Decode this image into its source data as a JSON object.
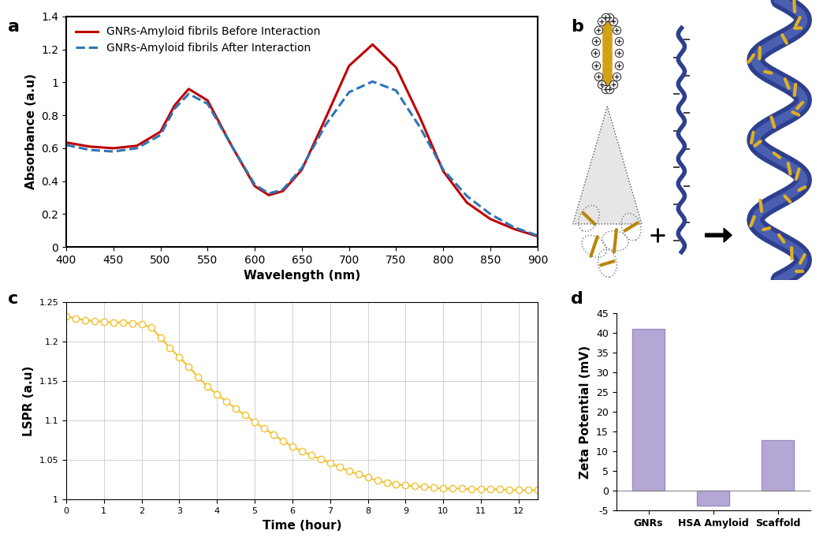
{
  "chart_data": [
    {
      "type": "line",
      "title": "a",
      "x_label": "Wavelength (nm)",
      "y_label": "Absorbance (a.u)",
      "x": [
        400,
        425,
        450,
        475,
        500,
        515,
        530,
        550,
        575,
        600,
        615,
        630,
        650,
        675,
        700,
        725,
        750,
        775,
        800,
        825,
        850,
        875,
        900
      ],
      "series": [
        {
          "name": "GNRs-Amyloid fibrils Before Interaction",
          "color": "#c00000",
          "line_style": "solid",
          "values": [
            0.635,
            0.61,
            0.6,
            0.615,
            0.7,
            0.86,
            0.96,
            0.89,
            0.62,
            0.37,
            0.315,
            0.34,
            0.47,
            0.78,
            1.1,
            1.23,
            1.09,
            0.79,
            0.46,
            0.27,
            0.17,
            0.11,
            0.065
          ]
        },
        {
          "name": "GNRs-Amyloid fibrils After Interaction",
          "color": "#2e75b6",
          "line_style": "dashed",
          "values": [
            0.62,
            0.59,
            0.58,
            0.6,
            0.68,
            0.84,
            0.93,
            0.87,
            0.62,
            0.38,
            0.325,
            0.35,
            0.48,
            0.74,
            0.94,
            1.005,
            0.95,
            0.73,
            0.47,
            0.31,
            0.2,
            0.12,
            0.07
          ]
        }
      ],
      "xlim": [
        400,
        900
      ],
      "xticks": [
        400,
        450,
        500,
        550,
        600,
        650,
        700,
        750,
        800,
        850,
        900
      ],
      "ylim": [
        0,
        1.4
      ],
      "yticks": [
        0,
        0.2,
        0.4,
        0.6,
        0.8,
        1,
        1.2,
        1.4
      ],
      "legend": "upper left",
      "grid": false
    },
    {
      "type": "line",
      "title": "c",
      "x_label": "Time (hour)",
      "y_label": "LSPR (a.u)",
      "x": [
        0,
        0.25,
        0.5,
        0.75,
        1,
        1.25,
        1.5,
        1.75,
        2,
        2.25,
        2.5,
        2.75,
        3,
        3.25,
        3.5,
        3.75,
        4,
        4.25,
        4.5,
        4.75,
        5,
        5.25,
        5.5,
        5.75,
        6,
        6.25,
        6.5,
        6.75,
        7,
        7.25,
        7.5,
        7.75,
        8,
        8.25,
        8.5,
        8.75,
        9,
        9.25,
        9.5,
        9.75,
        10,
        10.25,
        10.5,
        10.75,
        11,
        11.25,
        11.5,
        11.75,
        12,
        12.25,
        12.5
      ],
      "values": [
        1.232,
        1.229,
        1.227,
        1.226,
        1.225,
        1.224,
        1.224,
        1.223,
        1.222,
        1.218,
        1.205,
        1.192,
        1.18,
        1.168,
        1.155,
        1.143,
        1.133,
        1.124,
        1.115,
        1.107,
        1.098,
        1.09,
        1.082,
        1.074,
        1.067,
        1.061,
        1.056,
        1.051,
        1.046,
        1.041,
        1.036,
        1.032,
        1.028,
        1.024,
        1.021,
        1.019,
        1.018,
        1.017,
        1.016,
        1.015,
        1.014,
        1.014,
        1.014,
        1.013,
        1.013,
        1.013,
        1.013,
        1.012,
        1.012,
        1.012,
        1.012
      ],
      "color": "#f2c12e",
      "marker": "circle",
      "xlim": [
        0,
        12.5
      ],
      "xticks": [
        0,
        1,
        2,
        3,
        4,
        5,
        6,
        7,
        8,
        9,
        10,
        11,
        12
      ],
      "ylim": [
        1,
        1.25
      ],
      "yticks": [
        1,
        1.05,
        1.1,
        1.15,
        1.2,
        1.25
      ],
      "grid": true
    },
    {
      "type": "bar",
      "title": "d",
      "y_label": "Zeta Potential (mV)",
      "categories": [
        "GNRs",
        "HSA Amyloid",
        "Scaffold"
      ],
      "values": [
        41,
        -3.8,
        12.8
      ],
      "color": "#b4a7d6",
      "ylim": [
        -5,
        45
      ],
      "yticks": [
        -5,
        0,
        5,
        10,
        15,
        20,
        25,
        30,
        35,
        40,
        45
      ],
      "grid": false
    }
  ],
  "diagram": {
    "title": "b"
  }
}
